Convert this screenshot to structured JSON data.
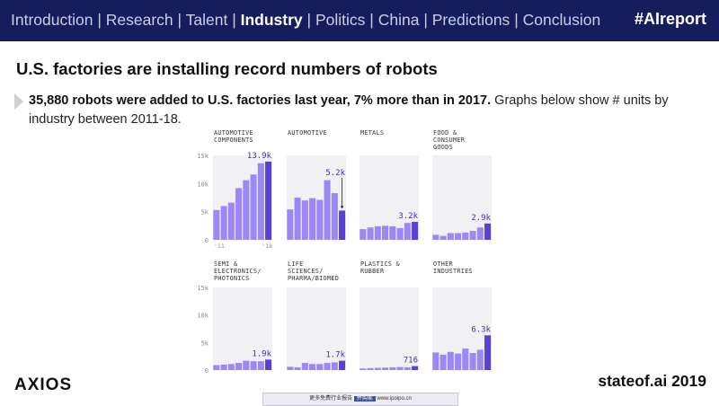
{
  "nav": {
    "items": [
      "Introduction",
      "Research",
      "Talent",
      "Industry",
      "Politics",
      "China",
      "Predictions",
      "Conclusion"
    ],
    "active": "Industry",
    "hashtag": "#AIreport"
  },
  "slide": {
    "title": "U.S. factories are installing record numbers of robots",
    "desc_bold": "35,880 robots were added to U.S. factories last year, 7% more than in 2017.",
    "desc_rest": " Graphs below show # units by industry between 2011-18."
  },
  "footer": {
    "logo": "AXIOS",
    "source": "stateof.ai 2019",
    "watermark_text": "更多免费行业报告",
    "watermark_tag": "并购家",
    "watermark_url": "www.ipoipo.cn"
  },
  "colors": {
    "bar": "#9b87f5",
    "bar_last": "#5b3fd9",
    "panel_bg": "#f1f1f4",
    "nav_bg": "#161d5c"
  },
  "chart_data": {
    "type": "bar",
    "ylim": [
      0,
      15000
    ],
    "y_ticks": [
      "15k",
      "10k",
      "5k",
      "0"
    ],
    "x_tick_first": "'11",
    "x_tick_last": "'18",
    "years": [
      2011,
      2012,
      2013,
      2014,
      2015,
      2016,
      2017,
      2018
    ],
    "panels": [
      {
        "name": "AUTOMOTIVE COMPONENTS",
        "label": "13.9k",
        "values": [
          5300,
          6000,
          6600,
          9200,
          10600,
          11600,
          13600,
          13900
        ]
      },
      {
        "name": "AUTOMOTIVE",
        "label": "5.2k",
        "values": [
          5400,
          7500,
          7000,
          7400,
          7100,
          10600,
          8300,
          5200
        ]
      },
      {
        "name": "METALS",
        "label": "3.2k",
        "values": [
          1900,
          2200,
          2400,
          2500,
          2400,
          2100,
          3000,
          3200
        ]
      },
      {
        "name": "FOOD & CONSUMER GOODS",
        "label": "2.9k",
        "values": [
          900,
          700,
          1200,
          1200,
          1300,
          1600,
          2200,
          2900
        ]
      },
      {
        "name": "SEMI & ELECTRONICS/ PHOTONICS",
        "label": "1.9k",
        "values": [
          900,
          1000,
          1100,
          1300,
          1700,
          1600,
          1600,
          1900
        ]
      },
      {
        "name": "LIFE SCIENCES/ PHARMA/BIOMED",
        "label": "1.7k",
        "values": [
          600,
          500,
          1300,
          1100,
          1100,
          1300,
          1400,
          1700
        ]
      },
      {
        "name": "PLASTICS & RUBBER",
        "label": "716",
        "values": [
          300,
          350,
          400,
          450,
          500,
          550,
          500,
          716
        ]
      },
      {
        "name": "OTHER INDUSTRIES",
        "label": "6.3k",
        "values": [
          3200,
          2800,
          3300,
          3000,
          3900,
          3100,
          3700,
          6300
        ]
      }
    ]
  }
}
